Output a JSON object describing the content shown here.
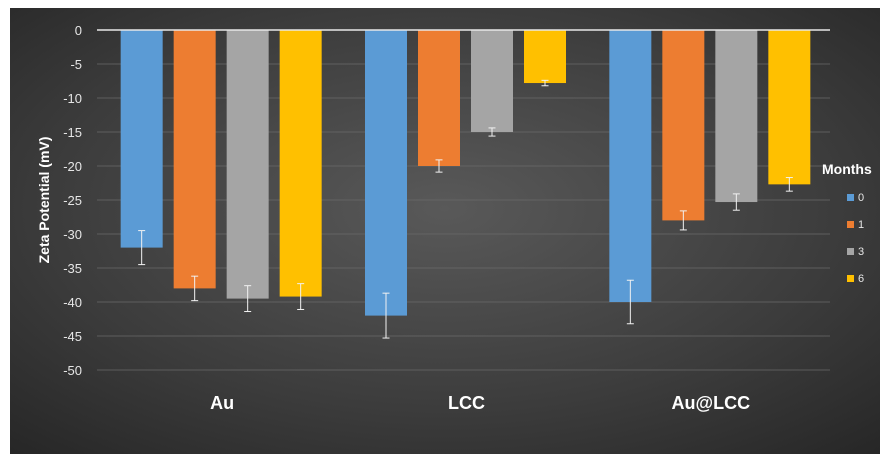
{
  "chart_data": {
    "type": "bar",
    "categories": [
      "Au",
      "LCC",
      "Au@LCC"
    ],
    "series": [
      {
        "name": "0",
        "values": [
          -32,
          -42,
          -40
        ],
        "errors": [
          2.5,
          3.3,
          3.2
        ],
        "color": "#5b9bd5"
      },
      {
        "name": "1",
        "values": [
          -38,
          -20,
          -28
        ],
        "errors": [
          1.8,
          0.9,
          1.4
        ],
        "color": "#ed7d31"
      },
      {
        "name": "3",
        "values": [
          -39.5,
          -15,
          -25.3
        ],
        "errors": [
          1.9,
          0.6,
          1.2
        ],
        "color": "#a5a5a5"
      },
      {
        "name": "6",
        "values": [
          -39.2,
          -7.8,
          -22.7
        ],
        "errors": [
          1.9,
          0.4,
          1.0
        ],
        "color": "#ffc000"
      }
    ],
    "ylabel": "Zeta Potential (mV)",
    "xlabel": "",
    "ylim": [
      -50,
      0
    ],
    "yticks": [
      0,
      -5,
      -10,
      -15,
      -20,
      -25,
      -30,
      -35,
      -40,
      -45,
      -50
    ],
    "legend": {
      "title": "Months",
      "placement": "right"
    },
    "grid": true,
    "background": "#3a3a3a"
  }
}
